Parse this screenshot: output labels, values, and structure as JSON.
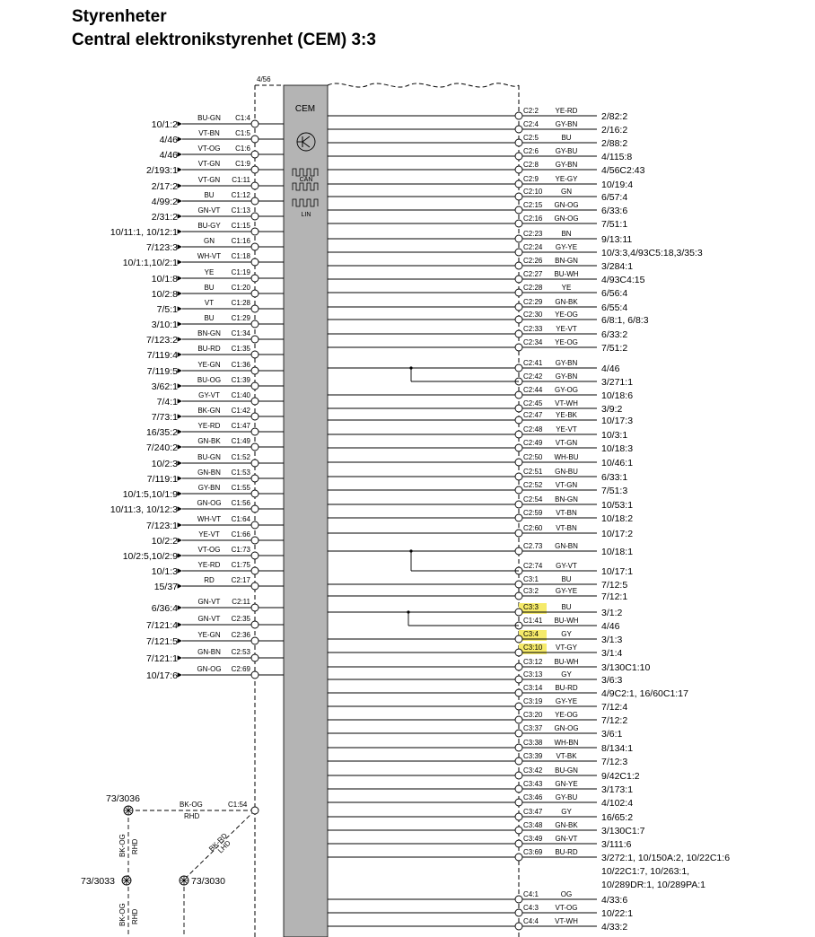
{
  "title": "Styrenheter",
  "subtitle": "Central elektronikstyrenhet (CEM) 3:3",
  "cem": {
    "ref": "4/56",
    "label": "CEM",
    "can_label": "CAN",
    "lin_label": "LIN"
  },
  "left_connections": [
    {
      "pin": "C1:4",
      "wire": "BU-GN",
      "ref": "10/1:2"
    },
    {
      "pin": "C1:5",
      "wire": "VT-BN",
      "ref": "4/46"
    },
    {
      "pin": "C1:6",
      "wire": "VT-OG",
      "ref": "4/46"
    },
    {
      "pin": "C1:9",
      "wire": "VT-GN",
      "ref": "2/193:1"
    },
    {
      "pin": "C1:11",
      "wire": "VT-GN",
      "ref": "2/17:2"
    },
    {
      "pin": "C1:12",
      "wire": "BU",
      "ref": "4/99:2"
    },
    {
      "pin": "C1:13",
      "wire": "GN-VT",
      "ref": "2/31:2"
    },
    {
      "pin": "C1:15",
      "wire": "BU-GY",
      "ref": "10/11:1, 10/12:1"
    },
    {
      "pin": "C1:16",
      "wire": "GN",
      "ref": "7/123:3"
    },
    {
      "pin": "C1:18",
      "wire": "WH-VT",
      "ref": "10/1:1,10/2:1"
    },
    {
      "pin": "C1:19",
      "wire": "YE",
      "ref": "10/1:8"
    },
    {
      "pin": "C1:20",
      "wire": "BU",
      "ref": "10/2:8"
    },
    {
      "pin": "C1:28",
      "wire": "VT",
      "ref": "7/5:1"
    },
    {
      "pin": "C1:29",
      "wire": "BU",
      "ref": "3/10:1"
    },
    {
      "pin": "C1:34",
      "wire": "BN-GN",
      "ref": "7/123:2"
    },
    {
      "pin": "C1:35",
      "wire": "BU-RD",
      "ref": "7/119:4"
    },
    {
      "pin": "C1:36",
      "wire": "YE-GN",
      "ref": "7/119:5"
    },
    {
      "pin": "C1:39",
      "wire": "BU-OG",
      "ref": "3/62:1"
    },
    {
      "pin": "C1:40",
      "wire": "GY-VT",
      "ref": "7/4:1"
    },
    {
      "pin": "C1:42",
      "wire": "BK-GN",
      "ref": "7/73:1"
    },
    {
      "pin": "C1:47",
      "wire": "YE-RD",
      "ref": "16/35:2"
    },
    {
      "pin": "C1:49",
      "wire": "GN-BK",
      "ref": "7/240:2"
    },
    {
      "pin": "C1:52",
      "wire": "BU-GN",
      "ref": "10/2:3"
    },
    {
      "pin": "C1:53",
      "wire": "GN-BN",
      "ref": "7/119:1"
    },
    {
      "pin": "C1:55",
      "wire": "GY-BN",
      "ref": "10/1:5,10/1:9"
    },
    {
      "pin": "C1:56",
      "wire": "GN-OG",
      "ref": "10/11:3, 10/12:3"
    },
    {
      "pin": "C1:64",
      "wire": "WH-VT",
      "ref": "7/123:1"
    },
    {
      "pin": "C1:66",
      "wire": "YE-VT",
      "ref": "10/2:2"
    },
    {
      "pin": "C1:73",
      "wire": "VT-OG",
      "ref": "10/2:5,10/2:9"
    },
    {
      "pin": "C1:75",
      "wire": "YE-RD",
      "ref": "10/1:3"
    },
    {
      "pin": "C2:17",
      "wire": "RD",
      "ref": "15/37"
    },
    {
      "pin": "C2:11",
      "wire": "GN-VT",
      "ref": "6/36:4"
    },
    {
      "pin": "C2:35",
      "wire": "GN-VT",
      "ref": "7/121:4"
    },
    {
      "pin": "C2:36",
      "wire": "YE-GN",
      "ref": "7/121:5"
    },
    {
      "pin": "C2:53",
      "wire": "GN-BN",
      "ref": "7/121:1"
    },
    {
      "pin": "C2:69",
      "wire": "GN-OG",
      "ref": "10/17:6"
    }
  ],
  "right_connections": [
    {
      "pin": "C2:2",
      "wire": "YE-RD",
      "ref": "2/82:2"
    },
    {
      "pin": "C2:4",
      "wire": "GY-BN",
      "ref": "2/16:2"
    },
    {
      "pin": "C2:5",
      "wire": "BU",
      "ref": "2/88:2"
    },
    {
      "pin": "C2:6",
      "wire": "GY-BU",
      "ref": "4/115:8"
    },
    {
      "pin": "C2:8",
      "wire": "GY-BN",
      "ref": "4/56C2:43"
    },
    {
      "pin": "C2:9",
      "wire": "YE-GY",
      "ref": "10/19:4"
    },
    {
      "pin": "C2:10",
      "wire": "GN",
      "ref": "6/57:4"
    },
    {
      "pin": "C2:15",
      "wire": "GN-OG",
      "ref": "6/33:6"
    },
    {
      "pin": "C2:16",
      "wire": "GN-OG",
      "ref": "7/51:1"
    },
    {
      "pin": "C2:23",
      "wire": "BN",
      "ref": "9/13:11"
    },
    {
      "pin": "C2:24",
      "wire": "GY-YE",
      "ref": "10/3:3,4/93C5:18,3/35:3"
    },
    {
      "pin": "C2:26",
      "wire": "BN-GN",
      "ref": "3/284:1"
    },
    {
      "pin": "C2:27",
      "wire": "BU-WH",
      "ref": "4/93C4:15"
    },
    {
      "pin": "C2:28",
      "wire": "YE",
      "ref": "6/56:4"
    },
    {
      "pin": "C2:29",
      "wire": "GN-BK",
      "ref": "6/55:4"
    },
    {
      "pin": "C2:30",
      "wire": "YE-OG",
      "ref": "6/8:1, 6/8:3"
    },
    {
      "pin": "C2:33",
      "wire": "YE-VT",
      "ref": "6/33:2"
    },
    {
      "pin": "C2:34",
      "wire": "YE-OG",
      "ref": "7/51:2"
    },
    {
      "pin": "C2:41",
      "wire": "GY-BN",
      "ref": "4/46"
    },
    {
      "pin": "C2:42",
      "wire": "GY-BN",
      "ref": "3/271:1"
    },
    {
      "pin": "C2:44",
      "wire": "GY-OG",
      "ref": "10/18:6"
    },
    {
      "pin": "C2:45",
      "wire": "VT-WH",
      "ref": "3/9:2"
    },
    {
      "pin": "C2:47",
      "wire": "YE-BK",
      "ref": "10/17:3"
    },
    {
      "pin": "C2:48",
      "wire": "YE-VT",
      "ref": "10/3:1"
    },
    {
      "pin": "C2:49",
      "wire": "VT-GN",
      "ref": "10/18:3"
    },
    {
      "pin": "C2:50",
      "wire": "WH-BU",
      "ref": "10/46:1"
    },
    {
      "pin": "C2:51",
      "wire": "GN-BU",
      "ref": "6/33:1"
    },
    {
      "pin": "C2:52",
      "wire": "VT-GN",
      "ref": "7/51:3"
    },
    {
      "pin": "C2:54",
      "wire": "BN-GN",
      "ref": "10/53:1"
    },
    {
      "pin": "C2:59",
      "wire": "VT-BN",
      "ref": "10/18:2"
    },
    {
      "pin": "C2:60",
      "wire": "VT-BN",
      "ref": "10/17:2"
    },
    {
      "pin": "C2.73",
      "wire": "GN-BN",
      "ref": "10/18:1"
    },
    {
      "pin": "C2:74",
      "wire": "GY-VT",
      "ref": "10/17:1"
    },
    {
      "pin": "C3:1",
      "wire": "BU",
      "ref": "7/12:5"
    },
    {
      "pin": "C3:2",
      "wire": "GY-YE",
      "ref": "7/12:1"
    },
    {
      "pin": "C3:3",
      "wire": "BU",
      "ref": "3/1:2",
      "highlight": true
    },
    {
      "pin": "C1:41",
      "wire": "BU-WH",
      "ref": "4/46"
    },
    {
      "pin": "C3:4",
      "wire": "GY",
      "ref": "3/1:3",
      "highlight": true
    },
    {
      "pin": "C3:10",
      "wire": "VT-GY",
      "ref": "3/1:4",
      "highlight": true
    },
    {
      "pin": "C3:12",
      "wire": "BU-WH",
      "ref": "3/130C1:10"
    },
    {
      "pin": "C3:13",
      "wire": "GY",
      "ref": "3/6:3"
    },
    {
      "pin": "C3:14",
      "wire": "BU-RD",
      "ref": "4/9C2:1, 16/60C1:17"
    },
    {
      "pin": "C3:19",
      "wire": "GY-YE",
      "ref": "7/12:4"
    },
    {
      "pin": "C3:20",
      "wire": "YE-OG",
      "ref": "7/12:2"
    },
    {
      "pin": "C3:37",
      "wire": "GN-OG",
      "ref": "3/6:1"
    },
    {
      "pin": "C3:38",
      "wire": "WH-BN",
      "ref": "8/134:1"
    },
    {
      "pin": "C3:39",
      "wire": "VT-BK",
      "ref": "7/12:3"
    },
    {
      "pin": "C3:42",
      "wire": "BU-GN",
      "ref": "9/42C1:2"
    },
    {
      "pin": "C3:43",
      "wire": "GN-YE",
      "ref": "3/173:1"
    },
    {
      "pin": "C3:46",
      "wire": "GY-BU",
      "ref": "4/102:4"
    },
    {
      "pin": "C3:47",
      "wire": "GY",
      "ref": "16/65:2"
    },
    {
      "pin": "C3:48",
      "wire": "GN-BK",
      "ref": "3/130C1:7"
    },
    {
      "pin": "C3:49",
      "wire": "GN-VT",
      "ref": "3/111:6"
    },
    {
      "pin": "C3:69",
      "wire": "BU-RD",
      "ref": "3/272:1, 10/150A:2, 10/22C1:6",
      "ref2": "10/22C1:7, 10/263:1,",
      "ref3": "10/289DR:1, 10/289PA:1"
    },
    {
      "pin": "C4:1",
      "wire": "OG",
      "ref": "4/33:6"
    },
    {
      "pin": "C4:3",
      "wire": "VT-OG",
      "ref": "10/22:1"
    },
    {
      "pin": "C4:4",
      "wire": "VT-WH",
      "ref": "4/33:2"
    }
  ],
  "ground_section": {
    "pin": "C1:54",
    "wire1": "BK-OG",
    "wire1_note": "RHD",
    "wire2": "BK-RD",
    "wire2_note": "LHD",
    "wire3": "BK-OG",
    "wire3_note": "RHD",
    "wire4": "BK-OG",
    "wire4_note": "RHD",
    "gp1": "73/3036",
    "gp2": "73/3033",
    "gp3": "73/3030"
  },
  "colors": {
    "cem_fill": "#b4b4b4",
    "highlight": "#f5ea6a",
    "line": "#000000"
  }
}
